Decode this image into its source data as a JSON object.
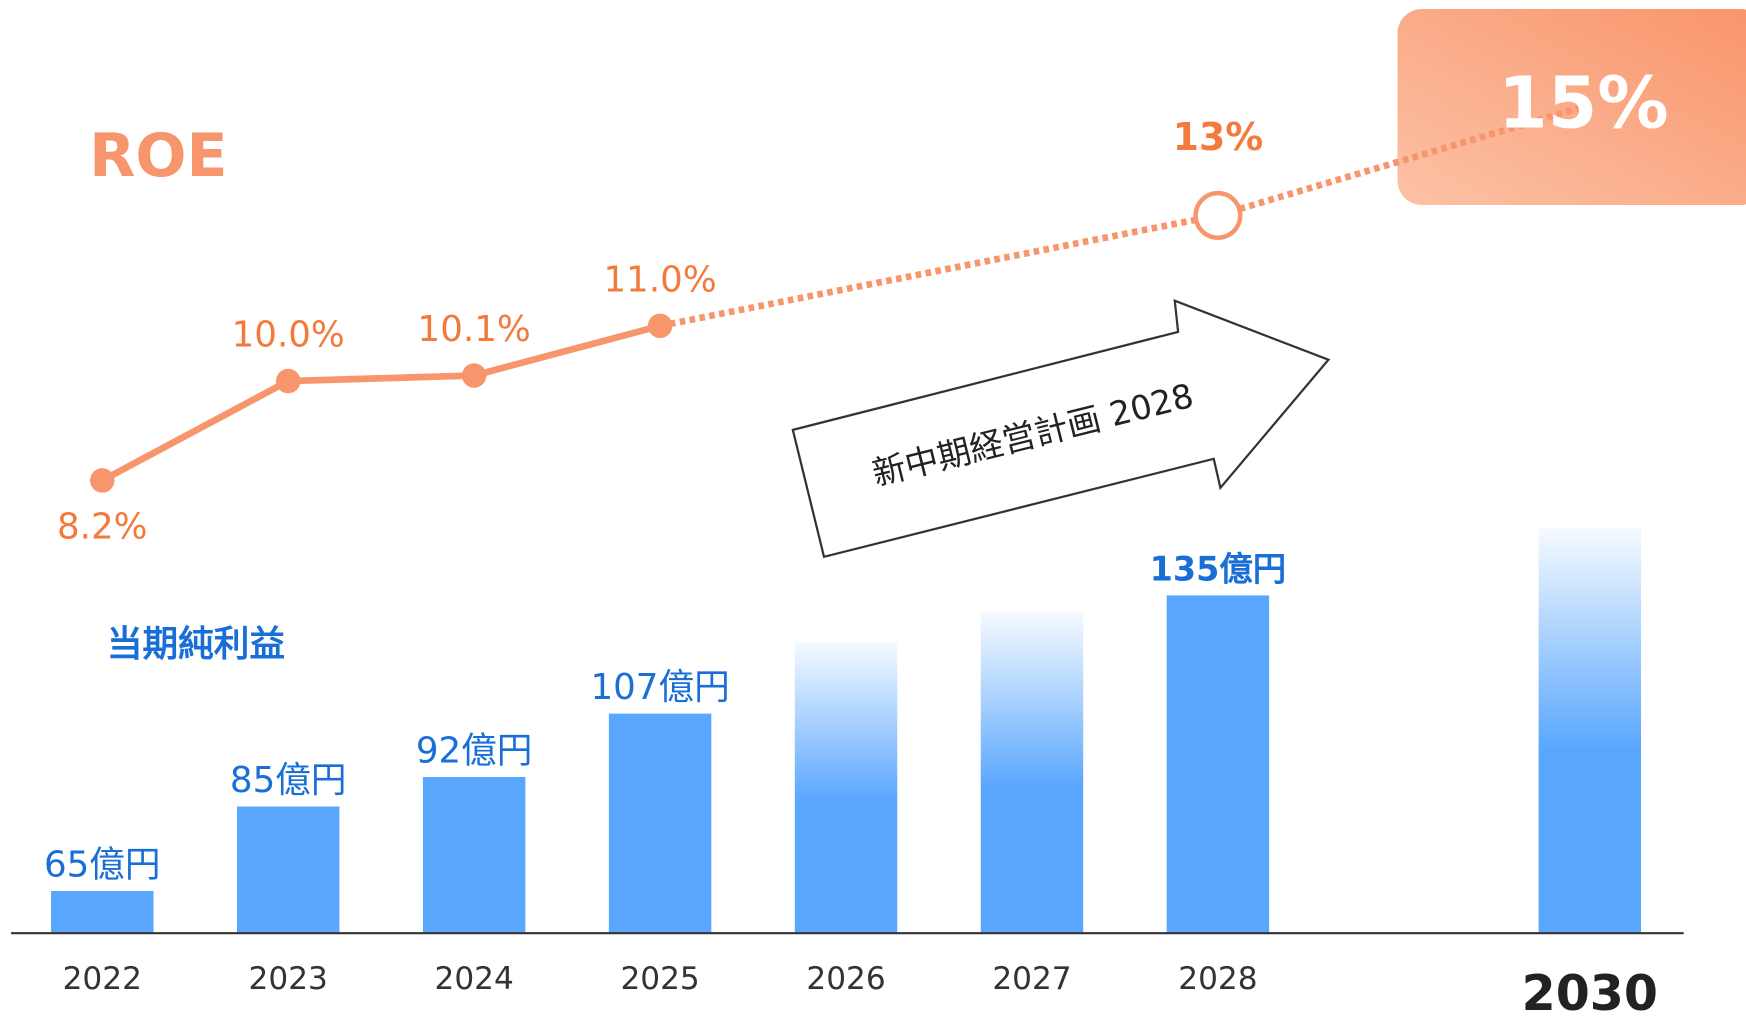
{
  "chart_data": {
    "type": "bar+line",
    "annotations": {
      "roe_label": "ROE",
      "profit_label": "当期純利益",
      "plan_arrow": "新中期経営計画 2028"
    },
    "x": [
      2022,
      2023,
      2024,
      2025,
      2026,
      2027,
      2028,
      2030
    ],
    "xlim": [
      2021.45,
      2030.84
    ],
    "ylim": [
      55,
      276
    ],
    "y2lim": [
      0,
      16.9
    ],
    "series": [
      {
        "name": "当期純利益",
        "color": "#58a6fe",
        "values": [
          65,
          85,
          92,
          107,
          124,
          131,
          135,
          151
        ],
        "value_labels": [
          "65億円",
          "85億円",
          "92億円",
          "107億円",
          null,
          null,
          "135億円",
          null
        ]
      },
      {
        "name": "ROE",
        "color": "#f7956c",
        "axis": "y2",
        "values": [
          8.2,
          10.0,
          10.1,
          11.0,
          null,
          null,
          13,
          15
        ],
        "value_labels": [
          "8.2%",
          "10.0%",
          "10.1%",
          "11.0%",
          null,
          null,
          "13%",
          "15%"
        ]
      }
    ]
  }
}
